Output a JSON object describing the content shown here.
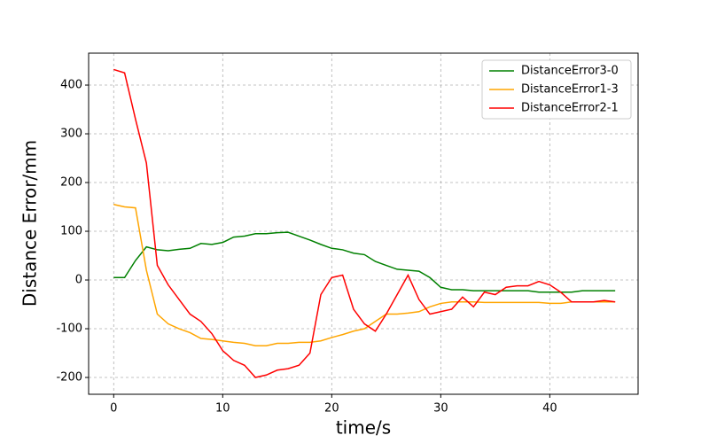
{
  "chart_data": {
    "type": "line",
    "xlabel": "time/s",
    "ylabel": "Distance Error/mm",
    "x": [
      0,
      1,
      2,
      3,
      4,
      5,
      6,
      7,
      8,
      9,
      10,
      11,
      12,
      13,
      14,
      15,
      16,
      17,
      18,
      19,
      20,
      21,
      22,
      23,
      24,
      25,
      26,
      27,
      28,
      29,
      30,
      31,
      32,
      33,
      34,
      35,
      36,
      37,
      38,
      39,
      40,
      41,
      42,
      43,
      44,
      45,
      46
    ],
    "series": [
      {
        "name": "DistanceError3-0",
        "color": "#008000",
        "values": [
          5,
          5,
          40,
          68,
          62,
          60,
          63,
          65,
          75,
          73,
          77,
          88,
          90,
          95,
          95,
          97,
          98,
          90,
          82,
          73,
          65,
          62,
          55,
          52,
          38,
          30,
          22,
          20,
          18,
          5,
          -15,
          -20,
          -20,
          -22,
          -22,
          -22,
          -22,
          -22,
          -22,
          -25,
          -25,
          -25,
          -25,
          -22,
          -22,
          -22,
          -22
        ]
      },
      {
        "name": "DistanceError1-3",
        "color": "#ffa500",
        "values": [
          155,
          150,
          148,
          20,
          -70,
          -90,
          -100,
          -108,
          -120,
          -122,
          -125,
          -128,
          -130,
          -135,
          -135,
          -130,
          -130,
          -128,
          -128,
          -125,
          -118,
          -112,
          -105,
          -100,
          -85,
          -70,
          -70,
          -68,
          -65,
          -55,
          -48,
          -45,
          -45,
          -45,
          -46,
          -46,
          -46,
          -46,
          -46,
          -46,
          -48,
          -48,
          -45,
          -45,
          -45,
          -45,
          -45
        ]
      },
      {
        "name": "DistanceError2-1",
        "color": "#ff0000",
        "values": [
          432,
          425,
          330,
          240,
          30,
          -10,
          -40,
          -70,
          -85,
          -110,
          -145,
          -165,
          -175,
          -200,
          -195,
          -185,
          -182,
          -175,
          -150,
          -30,
          5,
          10,
          -60,
          -90,
          -105,
          -70,
          -30,
          10,
          -40,
          -70,
          -65,
          -60,
          -35,
          -55,
          -25,
          -30,
          -15,
          -12,
          -12,
          -3,
          -10,
          -25,
          -45,
          -45,
          -45,
          -42,
          -45
        ]
      }
    ],
    "xlim": [
      -2.3,
      48.1
    ],
    "ylim": [
      -234.5,
      465.5
    ],
    "xticks": [
      0,
      10,
      20,
      30,
      40
    ],
    "yticks": [
      -200,
      -100,
      0,
      100,
      200,
      300,
      400
    ],
    "grid": true,
    "legend": "upper right"
  }
}
